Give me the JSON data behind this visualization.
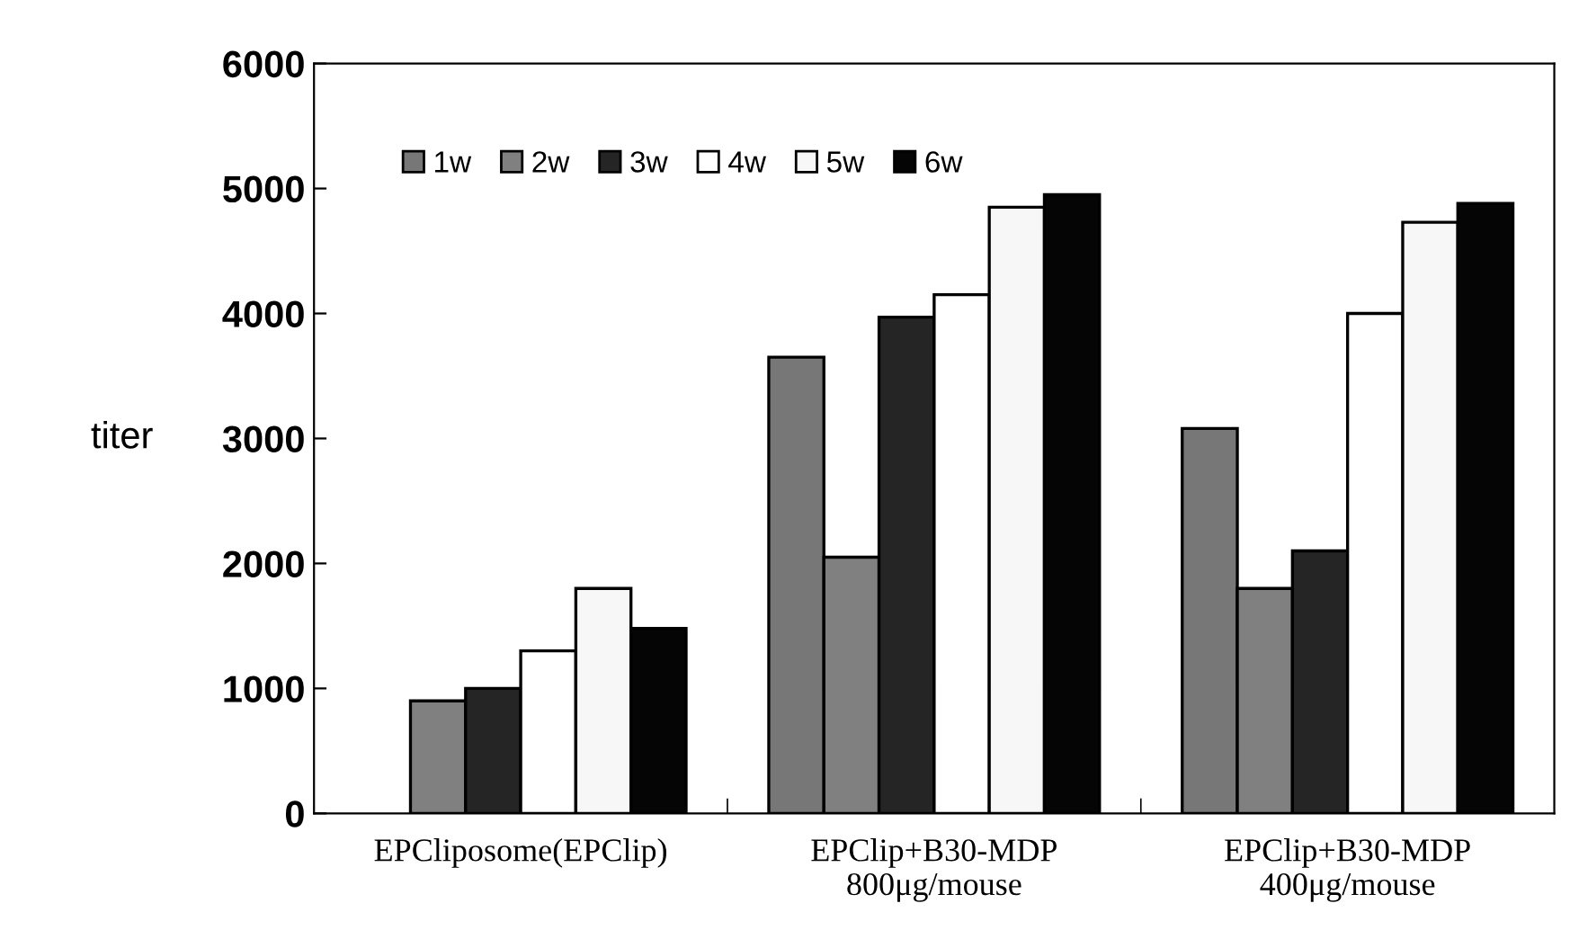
{
  "chart_data": {
    "type": "bar",
    "ylabel": "titer",
    "categories": [
      "EPCliposome(EPClip)",
      "EPClip+B30-MDP\n800μg/mouse",
      "EPClip+B30-MDP\n400μg/mouse"
    ],
    "series": [
      {
        "name": "1w",
        "color": "#777777",
        "values": [
          null,
          3650,
          3080
        ]
      },
      {
        "name": "2w",
        "color": "#808080",
        "values": [
          900,
          2050,
          1800
        ]
      },
      {
        "name": "3w",
        "color": "#252525",
        "values": [
          1000,
          3970,
          2100
        ]
      },
      {
        "name": "4w",
        "color": "#ffffff",
        "values": [
          1300,
          4150,
          4000
        ]
      },
      {
        "name": "5w",
        "color": "#f7f7f7",
        "values": [
          1800,
          4850,
          4730
        ]
      },
      {
        "name": "6w",
        "color": "#050505",
        "values": [
          1480,
          4950,
          4880
        ]
      }
    ],
    "ylim": [
      0,
      6000
    ],
    "yticks": [
      0,
      1000,
      2000,
      3000,
      4000,
      5000,
      6000
    ],
    "grid": false,
    "legend": "top left"
  }
}
